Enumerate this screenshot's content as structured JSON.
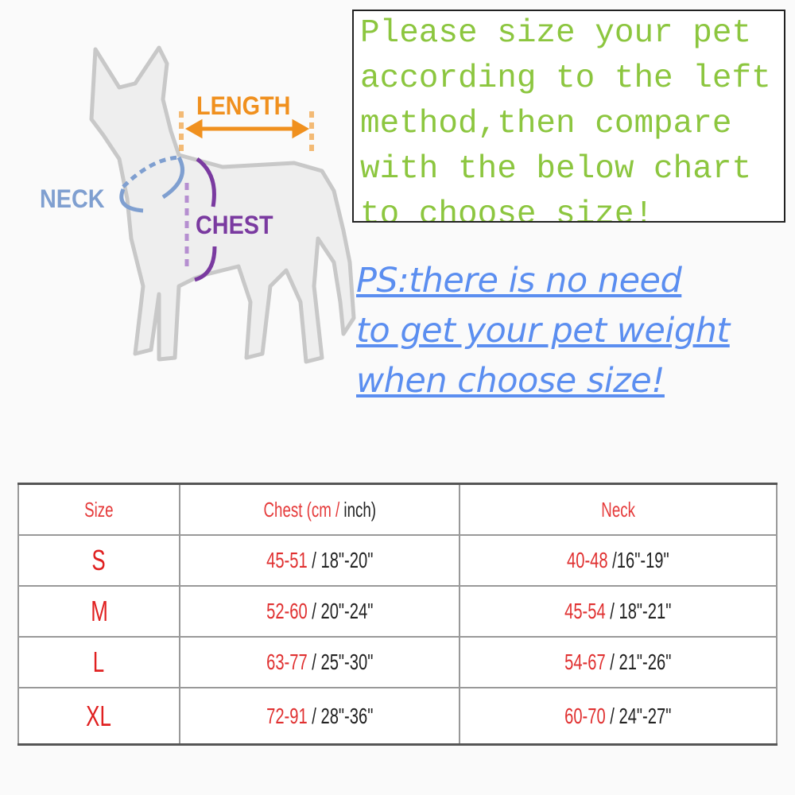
{
  "diagram": {
    "labels": {
      "length": "LENGTH",
      "neck": "NECK",
      "chest": "CHEST"
    },
    "colors": {
      "length": "#f0901e",
      "neck": "#7f9fd0",
      "chest": "#7a3aa0"
    }
  },
  "instruction_box": {
    "lines": [
      "Please size your pet",
      "according to the left",
      "method,then compare",
      "with the below chart",
      "to choose size!"
    ]
  },
  "note": {
    "lines": [
      "PS:there is no need",
      "to get your pet weight",
      "when choose size!"
    ]
  },
  "size_table": {
    "headers": {
      "size": "Size",
      "chest_red": "Chest (cm /",
      "chest_black": " inch)",
      "neck": "Neck"
    },
    "rows": [
      {
        "size": "S",
        "chest_cm": "45-51",
        "chest_in": " / 18\"-20\"",
        "neck_cm": "40-48",
        "neck_in": " /16\"-19\""
      },
      {
        "size": "M",
        "chest_cm": "52-60",
        "chest_in": " / 20\"-24\"",
        "neck_cm": "45-54",
        "neck_in": " / 18\"-21\""
      },
      {
        "size": "L",
        "chest_cm": "63-77",
        "chest_in": " / 25\"-30\"",
        "neck_cm": "54-67",
        "neck_in": " / 21\"-26\""
      },
      {
        "size": "XL",
        "chest_cm": "72-91",
        "chest_in": " / 28\"-36\"",
        "neck_cm": "60-70",
        "neck_in": " / 24\"-27\""
      }
    ]
  }
}
